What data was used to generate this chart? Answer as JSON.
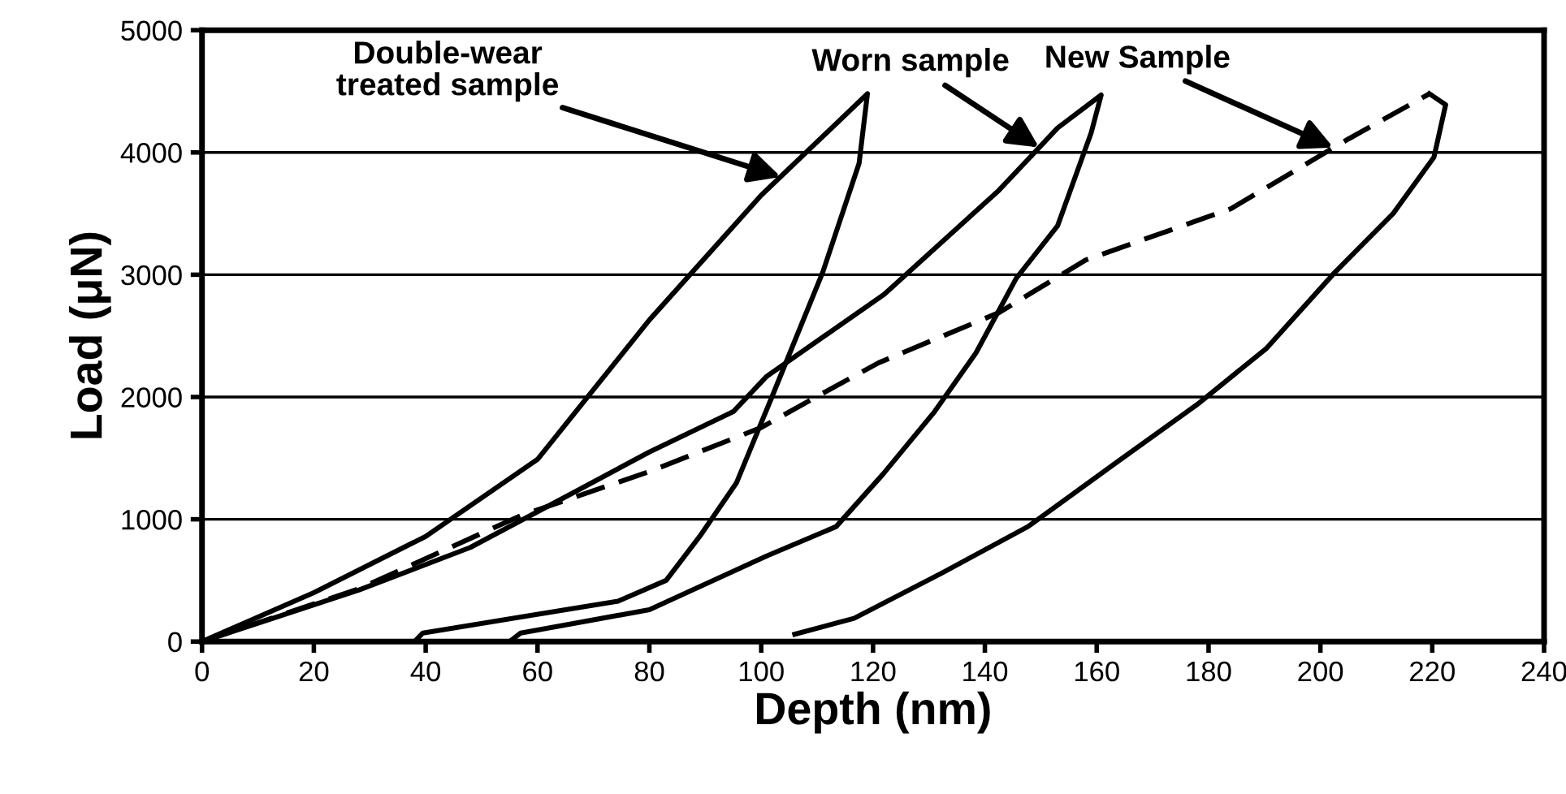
{
  "chart_data": {
    "type": "line",
    "xlabel": "Depth (nm)",
    "ylabel": "Load (μN)",
    "xlim": [
      0,
      240
    ],
    "xticks": [
      0,
      20,
      40,
      60,
      80,
      100,
      120,
      140,
      160,
      180,
      200,
      220,
      240
    ],
    "ylim": [
      0,
      5000
    ],
    "yticks": [
      0,
      1000,
      2000,
      3000,
      4000,
      5000
    ],
    "grid": "y",
    "marker": "none",
    "series": [
      {
        "color": "#000000",
        "line_style": "solid",
        "x": [
          0,
          20,
          40,
          60,
          80,
          100,
          119,
          117.5,
          111,
          102,
          95.6,
          89,
          83,
          74.4,
          57,
          39.5,
          38
        ],
        "values": [
          0,
          400,
          860,
          1490,
          2630,
          3650,
          4480,
          3910,
          3020,
          2010,
          1300,
          860,
          500,
          330,
          200,
          70,
          0
        ]
      },
      {
        "color": "#000000",
        "line_style": "solid",
        "x": [
          0,
          28,
          48,
          66.5,
          80,
          95,
          101,
          122,
          142.5,
          153,
          160.8,
          159,
          153,
          145.6,
          138.4,
          131,
          121.8,
          113.4,
          101,
          80,
          57,
          55
        ],
        "values": [
          0,
          420,
          770,
          1220,
          1550,
          1880,
          2170,
          2840,
          3690,
          4200,
          4470,
          4160,
          3400,
          2970,
          2360,
          1880,
          1370,
          940,
          700,
          260,
          70,
          0
        ]
      },
      {
        "color": "#000000",
        "line_style": "dashed",
        "x": [
          0,
          28,
          57,
          80,
          100,
          111,
          121,
          142.5,
          158,
          184,
          205,
          219.5
        ],
        "values": [
          0,
          430,
          1030,
          1390,
          1750,
          2030,
          2280,
          2690,
          3120,
          3540,
          4110,
          4480
        ]
      },
      {
        "color": "#000000",
        "line_style": "solid",
        "x": [
          219.5,
          222.4,
          220.3,
          213,
          202.6,
          190.4,
          178,
          163.4,
          147.7,
          132.3,
          116.6,
          106
        ],
        "values": [
          4480,
          4390,
          3960,
          3500,
          3020,
          2400,
          1940,
          1460,
          940,
          560,
          190,
          60
        ]
      }
    ],
    "annotations": [
      {
        "text": "Double-wear\ntreated sample",
        "x": 103.5,
        "y": 3800
      },
      {
        "text": "Worn sample",
        "x": 149.7,
        "y": 4040
      },
      {
        "text": "New Sample",
        "x": 202.3,
        "y": 4040
      }
    ]
  }
}
